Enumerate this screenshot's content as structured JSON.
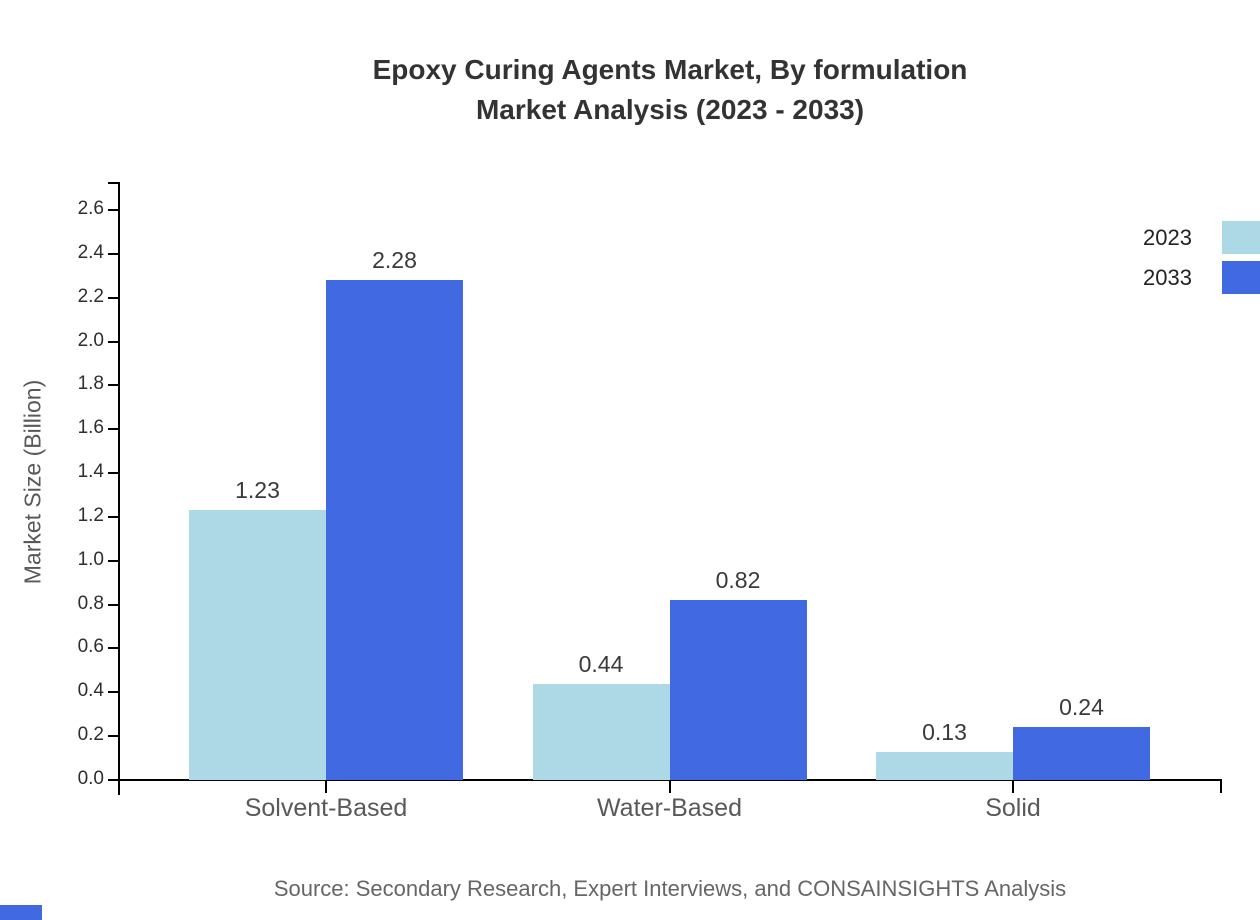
{
  "chart": {
    "title_line1": "Epoxy Curing Agents Market, By formulation",
    "title_line2": "Market Analysis (2023 - 2033)",
    "source_note": "Source: Secondary Research, Expert Interviews, and CONSAINSIGHTS Analysis"
  },
  "chart_data": {
    "type": "bar",
    "title": "Epoxy Curing Agents Market, By formulation Market Analysis (2023 - 2033)",
    "xlabel": "",
    "ylabel": "Market Size (Billion)",
    "categories": [
      "Solvent-Based",
      "Water-Based",
      "Solid"
    ],
    "series": [
      {
        "name": "2023",
        "color": "#ADD8E6",
        "values": [
          1.23,
          0.44,
          0.13
        ]
      },
      {
        "name": "2033",
        "color": "#4169E1",
        "values": [
          2.28,
          0.82,
          0.24
        ]
      }
    ],
    "ylim": [
      0.0,
      2.7
    ],
    "yticks": [
      0.0,
      0.2,
      0.4,
      0.6,
      0.8,
      1.0,
      1.2,
      1.4,
      1.6,
      1.8,
      2.0,
      2.2,
      2.4,
      2.6
    ],
    "grid": false,
    "legend_position": "top-right",
    "bar_value_labels": true,
    "value_label_decimals": 2
  },
  "palette": {
    "series_2023": "#ADD8E6",
    "series_2033": "#4169E1",
    "corner_mark": "#4169E1",
    "axis": "#000000"
  }
}
